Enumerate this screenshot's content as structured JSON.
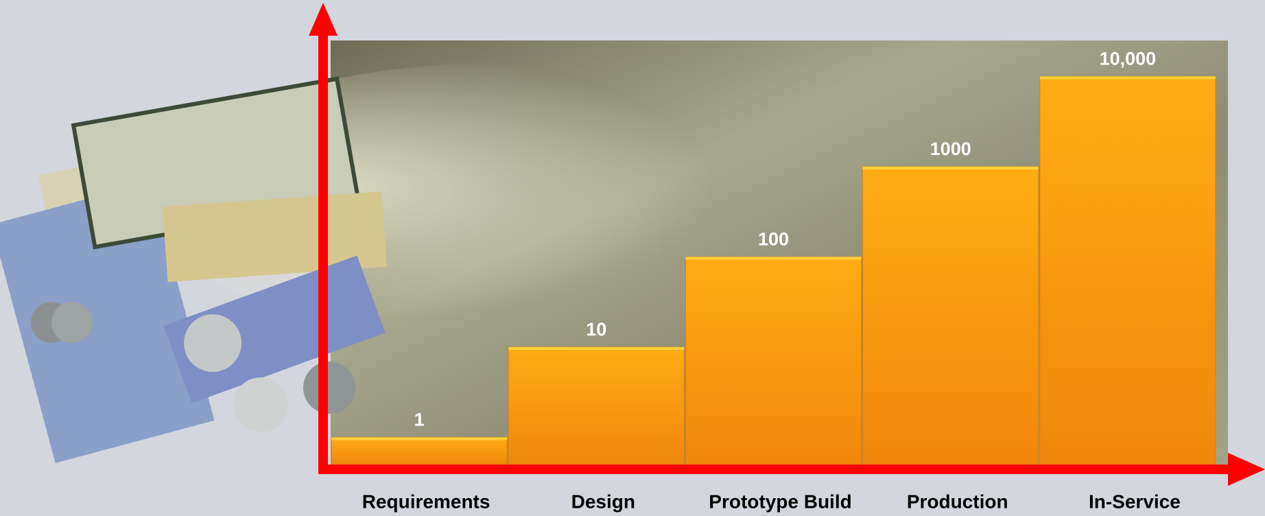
{
  "chart_data": {
    "type": "bar",
    "categories": [
      "Requirements",
      "Design",
      "Prototype Build",
      "Production",
      "In-Service"
    ],
    "values": [
      1,
      10,
      100,
      1000,
      10000
    ],
    "value_labels": [
      "1",
      "10",
      "100",
      "1000",
      "10,000"
    ],
    "color": "#f59a0c",
    "log_scale": true,
    "ylim": [
      0.5,
      25000
    ]
  }
}
